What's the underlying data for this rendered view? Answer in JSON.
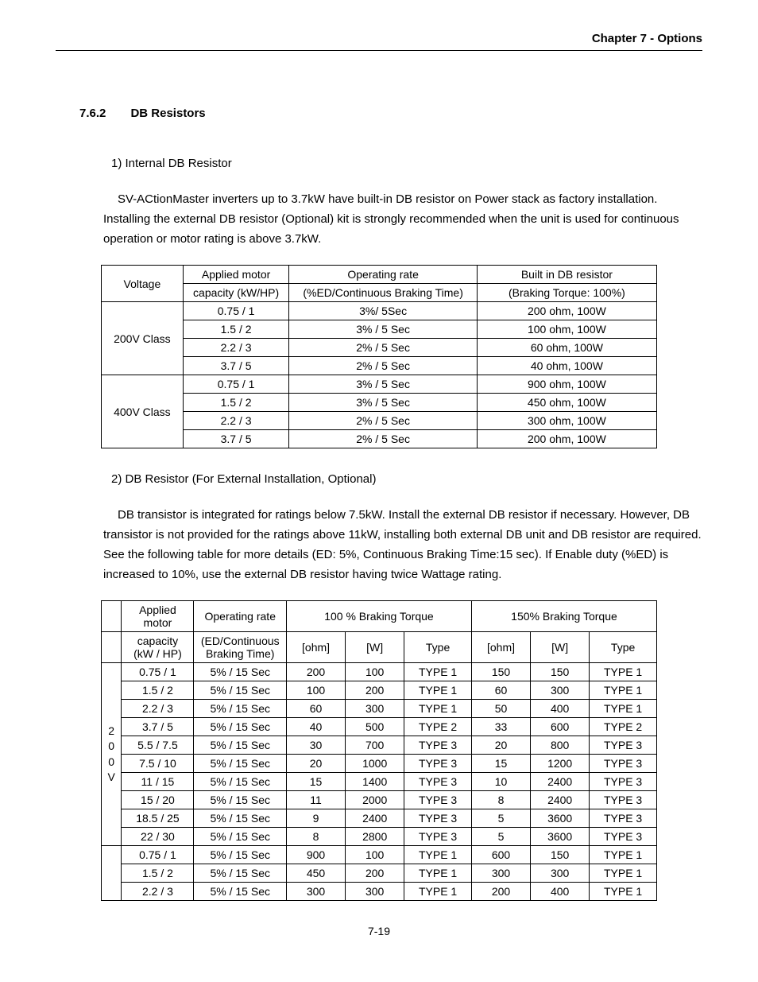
{
  "header": {
    "chapter": "Chapter 7 - Options"
  },
  "section": {
    "number": "7.6.2",
    "title": "DB Resistors"
  },
  "sub1": {
    "label": "1)  Internal DB Resistor",
    "text": "SV-ACtionMaster inverters up to 3.7kW have built-in DB resistor on Power stack as factory installation. Installing the external DB resistor (Optional) kit is strongly recommended when the unit is used for continuous operation or motor rating is above 3.7kW."
  },
  "table1": {
    "headers": {
      "voltage": "Voltage",
      "capacity_l1": "Applied motor",
      "capacity_l2": "capacity (kW/HP)",
      "oprate_l1": "Operating rate",
      "oprate_l2": "(%ED/Continuous Braking Time)",
      "builtin_l1": "Built in DB resistor",
      "builtin_l2": "(Braking Torque: 100%)"
    },
    "groups": [
      {
        "voltage": "200V Class",
        "rows": [
          {
            "cap": "0.75 / 1",
            "op": "3%/ 5Sec",
            "res": "200 ohm, 100W"
          },
          {
            "cap": "1.5 / 2",
            "op": "3% / 5 Sec",
            "res": "100 ohm, 100W"
          },
          {
            "cap": "2.2 / 3",
            "op": "2% / 5 Sec",
            "res": "60 ohm, 100W"
          },
          {
            "cap": "3.7 / 5",
            "op": "2% / 5 Sec",
            "res": "40 ohm, 100W"
          }
        ]
      },
      {
        "voltage": "400V Class",
        "rows": [
          {
            "cap": "0.75 / 1",
            "op": "3% / 5 Sec",
            "res": "900 ohm, 100W"
          },
          {
            "cap": "1.5 / 2",
            "op": "3% / 5 Sec",
            "res": "450 ohm, 100W"
          },
          {
            "cap": "2.2 / 3",
            "op": "2% / 5 Sec",
            "res": "300 ohm, 100W"
          },
          {
            "cap": "3.7 / 5",
            "op": "2% / 5 Sec",
            "res": "200 ohm, 100W"
          }
        ]
      }
    ]
  },
  "sub2": {
    "label": "2)  DB Resistor (For External Installation, Optional)",
    "text": "DB transistor is integrated for ratings below 7.5kW. Install the external DB resistor if necessary. However, DB transistor is not provided for the ratings above 11kW, installing both external DB unit and DB resistor are required. See the following table for more details (ED: 5%, Continuous Braking Time:15 sec). If Enable duty (%ED) is increased to 10%, use the external DB resistor having twice Wattage rating."
  },
  "table2": {
    "headers": {
      "blank": "",
      "cap_l1": "Applied motor",
      "cap_l2": "capacity",
      "cap_l3": "(kW / HP)",
      "op_l1": "Operating rate",
      "op_l2": "(ED/Continuous",
      "op_l3": "Braking Time)",
      "bt100": "100 % Braking Torque",
      "bt150": "150% Braking Torque",
      "ohm": "[ohm]",
      "w": "[W]",
      "type": "Type"
    },
    "groups": [
      {
        "voltage": "2\n0\n0\nV",
        "rows": [
          {
            "cap": "0.75 / 1",
            "op": "5% / 15 Sec",
            "o1": "200",
            "w1": "100",
            "t1": "TYPE 1",
            "o2": "150",
            "w2": "150",
            "t2": "TYPE 1"
          },
          {
            "cap": "1.5 / 2",
            "op": "5% / 15 Sec",
            "o1": "100",
            "w1": "200",
            "t1": "TYPE 1",
            "o2": "60",
            "w2": "300",
            "t2": "TYPE 1"
          },
          {
            "cap": "2.2 / 3",
            "op": "5% / 15 Sec",
            "o1": "60",
            "w1": "300",
            "t1": "TYPE 1",
            "o2": "50",
            "w2": "400",
            "t2": "TYPE 1"
          },
          {
            "cap": "3.7 / 5",
            "op": "5% / 15 Sec",
            "o1": "40",
            "w1": "500",
            "t1": "TYPE 2",
            "o2": "33",
            "w2": "600",
            "t2": "TYPE 2"
          },
          {
            "cap": "5.5 / 7.5",
            "op": "5% / 15 Sec",
            "o1": "30",
            "w1": "700",
            "t1": "TYPE 3",
            "o2": "20",
            "w2": "800",
            "t2": "TYPE 3"
          },
          {
            "cap": "7.5  / 10",
            "op": "5% / 15 Sec",
            "o1": "20",
            "w1": "1000",
            "t1": "TYPE 3",
            "o2": "15",
            "w2": "1200",
            "t2": "TYPE 3"
          },
          {
            "cap": "11 / 15",
            "op": "5% / 15 Sec",
            "o1": "15",
            "w1": "1400",
            "t1": "TYPE 3",
            "o2": "10",
            "w2": "2400",
            "t2": "TYPE 3"
          },
          {
            "cap": "15 / 20",
            "op": "5% / 15 Sec",
            "o1": "11",
            "w1": "2000",
            "t1": "TYPE 3",
            "o2": "8",
            "w2": "2400",
            "t2": "TYPE 3"
          },
          {
            "cap": "18.5 / 25",
            "op": "5% / 15 Sec",
            "o1": "9",
            "w1": "2400",
            "t1": "TYPE 3",
            "o2": "5",
            "w2": "3600",
            "t2": "TYPE 3"
          },
          {
            "cap": "22 / 30",
            "op": "5% / 15 Sec",
            "o1": "8",
            "w1": "2800",
            "t1": "TYPE 3",
            "o2": "5",
            "w2": "3600",
            "t2": "TYPE 3"
          }
        ]
      },
      {
        "voltage": "",
        "rows": [
          {
            "cap": "0.75 / 1",
            "op": "5% / 15 Sec",
            "o1": "900",
            "w1": "100",
            "t1": "TYPE 1",
            "o2": "600",
            "w2": "150",
            "t2": "TYPE 1"
          },
          {
            "cap": "1.5 / 2",
            "op": "5% / 15 Sec",
            "o1": "450",
            "w1": "200",
            "t1": "TYPE 1",
            "o2": "300",
            "w2": "300",
            "t2": "TYPE 1"
          },
          {
            "cap": "2.2 / 3",
            "op": "5% / 15 Sec",
            "o1": "300",
            "w1": "300",
            "t1": "TYPE 1",
            "o2": "200",
            "w2": "400",
            "t2": "TYPE 1"
          }
        ]
      }
    ]
  },
  "footer": {
    "page": "7-19"
  }
}
